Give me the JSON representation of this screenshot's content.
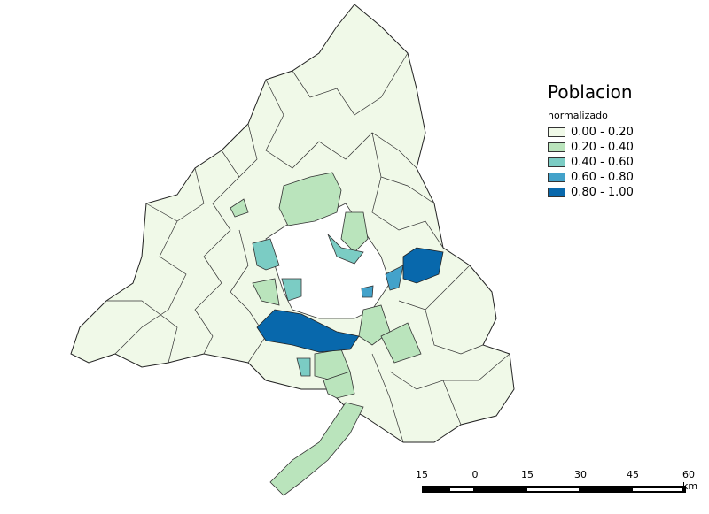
{
  "legend": {
    "title": "Poblacion",
    "subtitle": "normalizado",
    "classes": [
      {
        "label": "0.00 - 0.20",
        "color": "#f0f9e8"
      },
      {
        "label": "0.20 - 0.40",
        "color": "#bae4bc"
      },
      {
        "label": "0.40 - 0.60",
        "color": "#7bccc4"
      },
      {
        "label": "0.60 - 0.80",
        "color": "#43a2ca"
      },
      {
        "label": "0.80 - 1.00",
        "color": "#0868ac"
      }
    ]
  },
  "scalebar": {
    "ticks": [
      "15",
      "0",
      "15",
      "30",
      "45",
      "60 km"
    ]
  }
}
